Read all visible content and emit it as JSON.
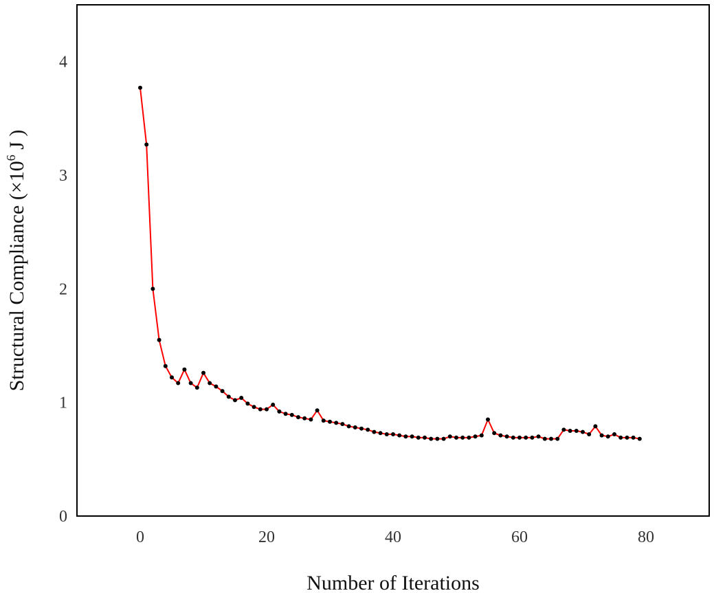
{
  "chart_data": {
    "type": "line",
    "title": "",
    "xlabel": "Number of Iterations",
    "ylabel": {
      "main": "Structural Compliance (×10",
      "exponent": "6",
      "unit": " J )"
    },
    "xlim": [
      -10,
      90
    ],
    "ylim": [
      0,
      4.5
    ],
    "xticks": [
      0,
      20,
      40,
      60,
      80
    ],
    "yticks": [
      0,
      1,
      2,
      3,
      4
    ],
    "grid": false,
    "legend": "none",
    "line_color": "#ff0000",
    "marker_color": "#000000",
    "series": [
      {
        "x": [
          0,
          1,
          2,
          3,
          4,
          5,
          6,
          7,
          8,
          9,
          10,
          11,
          12,
          13,
          14,
          15,
          16,
          17,
          18,
          19,
          20,
          21,
          22,
          23,
          24,
          25,
          26,
          27,
          28,
          29,
          30,
          31,
          32,
          33,
          34,
          35,
          36,
          37,
          38,
          39,
          40,
          41,
          42,
          43,
          44,
          45,
          46,
          47,
          48,
          49,
          50,
          51,
          52,
          53,
          54,
          55,
          56,
          57,
          58,
          59,
          60,
          61,
          62,
          63,
          64,
          65,
          66,
          67,
          68,
          69,
          70,
          71,
          72,
          73,
          74,
          75,
          76,
          77,
          78,
          79
        ],
        "y": [
          3.77,
          3.27,
          2.0,
          1.55,
          1.32,
          1.22,
          1.17,
          1.29,
          1.17,
          1.13,
          1.26,
          1.17,
          1.14,
          1.1,
          1.05,
          1.02,
          1.04,
          0.99,
          0.96,
          0.94,
          0.94,
          0.98,
          0.92,
          0.9,
          0.89,
          0.87,
          0.86,
          0.85,
          0.93,
          0.84,
          0.83,
          0.82,
          0.81,
          0.79,
          0.78,
          0.77,
          0.76,
          0.74,
          0.73,
          0.72,
          0.72,
          0.71,
          0.7,
          0.7,
          0.69,
          0.69,
          0.68,
          0.68,
          0.68,
          0.7,
          0.69,
          0.69,
          0.69,
          0.7,
          0.71,
          0.85,
          0.73,
          0.71,
          0.7,
          0.69,
          0.69,
          0.69,
          0.69,
          0.7,
          0.68,
          0.68,
          0.68,
          0.76,
          0.75,
          0.75,
          0.74,
          0.72,
          0.79,
          0.71,
          0.7,
          0.72,
          0.69,
          0.69,
          0.69,
          0.68
        ]
      }
    ]
  }
}
